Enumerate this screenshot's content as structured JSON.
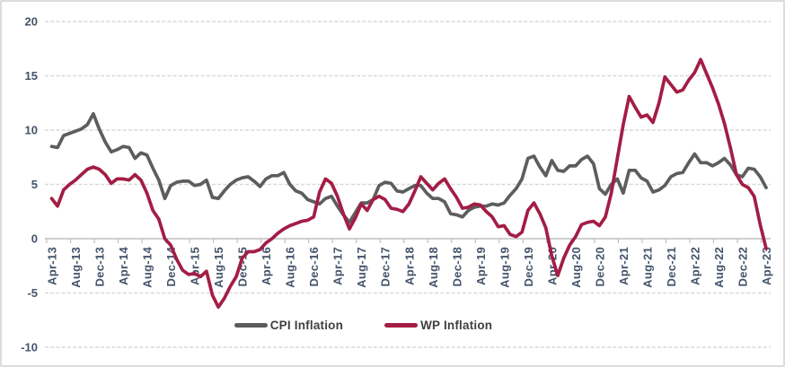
{
  "figure": {
    "background_color": "#ffffff",
    "border_color": "#dcdcdc"
  },
  "chart_data": {
    "type": "line",
    "title": "",
    "xlabel": "",
    "ylabel": "",
    "ylim": [
      -10,
      20
    ],
    "y_ticks": [
      20,
      15,
      10,
      5,
      0,
      -5,
      -10
    ],
    "grid": {
      "horizontal": true,
      "style": "dashed",
      "color": "#d9d9d9"
    },
    "axis": {
      "zero_line_color": "#bfbfbf",
      "tick_color": "#bfbfbf",
      "label_color": "#44546a"
    },
    "legend_position": "bottom-center-inside",
    "points_start": "Apr-13",
    "points_end": "Apr-23",
    "points_frequency": "monthly",
    "x_tick_labels": [
      "Apr-13",
      "Aug-13",
      "Dec-13",
      "Apr-14",
      "Aug-14",
      "Dec-14",
      "Apr-15",
      "Aug-15",
      "Dec-15",
      "Apr-16",
      "Aug-16",
      "Dec-16",
      "Apr-17",
      "Aug-17",
      "Dec-17",
      "Apr-18",
      "Aug-18",
      "Dec-18",
      "Apr-19",
      "Aug-19",
      "Dec-19",
      "Apr-20",
      "Aug-20",
      "Dec-20",
      "Apr-21",
      "Aug-21",
      "Dec-21",
      "Apr-22",
      "Aug-22",
      "Dec-22",
      "Apr-23"
    ],
    "x_points_per_tick": 4,
    "series": [
      {
        "name": "CPI Inflation",
        "color": "#5d5d5d",
        "values": [
          8.5,
          8.4,
          9.5,
          9.7,
          9.9,
          10.1,
          10.5,
          11.5,
          10.1,
          8.9,
          8.0,
          8.2,
          8.5,
          8.4,
          7.4,
          7.9,
          7.7,
          6.5,
          5.4,
          3.7,
          4.9,
          5.2,
          5.3,
          5.3,
          4.9,
          5.0,
          5.4,
          3.8,
          3.7,
          4.4,
          5.0,
          5.4,
          5.6,
          5.7,
          5.3,
          4.8,
          5.5,
          5.8,
          5.8,
          6.1,
          5.0,
          4.4,
          4.2,
          3.6,
          3.4,
          3.2,
          3.7,
          3.9,
          3.0,
          2.2,
          1.5,
          2.4,
          3.3,
          3.3,
          3.6,
          4.9,
          5.2,
          5.1,
          4.4,
          4.3,
          4.6,
          4.9,
          4.9,
          4.2,
          3.7,
          3.7,
          3.4,
          2.3,
          2.2,
          2.0,
          2.6,
          2.9,
          3.0,
          3.0,
          3.2,
          3.1,
          3.3,
          4.0,
          4.6,
          5.5,
          7.4,
          7.6,
          6.6,
          5.8,
          7.2,
          6.3,
          6.2,
          6.7,
          6.7,
          7.3,
          7.6,
          6.9,
          4.6,
          4.1,
          5.0,
          5.5,
          4.2,
          6.3,
          6.3,
          5.6,
          5.3,
          4.3,
          4.5,
          4.9,
          5.7,
          6.0,
          6.1,
          7.0,
          7.8,
          7.0,
          7.0,
          6.7,
          7.0,
          7.4,
          6.8,
          5.9,
          5.7,
          6.5,
          6.4,
          5.7,
          4.7
        ]
      },
      {
        "name": "WP Inflation",
        "color": "#a31d45",
        "values": [
          3.7,
          3.0,
          4.5,
          5.0,
          5.4,
          5.9,
          6.4,
          6.6,
          6.4,
          5.9,
          5.1,
          5.5,
          5.5,
          5.4,
          5.9,
          5.4,
          4.2,
          2.6,
          1.8,
          0.0,
          -0.6,
          -1.9,
          -2.9,
          -3.3,
          -3.2,
          -3.5,
          -3.0,
          -5.2,
          -6.3,
          -5.5,
          -4.4,
          -3.5,
          -1.8,
          -1.2,
          -1.2,
          -1.0,
          -0.4,
          0.0,
          0.5,
          0.9,
          1.2,
          1.4,
          1.6,
          1.7,
          2.0,
          4.3,
          5.5,
          5.1,
          3.9,
          2.3,
          0.9,
          1.9,
          3.2,
          2.6,
          3.6,
          3.9,
          3.6,
          2.8,
          2.7,
          2.5,
          3.2,
          4.4,
          5.7,
          5.1,
          4.5,
          5.1,
          5.5,
          4.6,
          3.8,
          2.8,
          2.9,
          3.2,
          3.1,
          2.5,
          2.0,
          1.1,
          1.2,
          0.4,
          0.2,
          0.6,
          2.6,
          3.3,
          2.3,
          1.0,
          -1.6,
          -3.4,
          -1.8,
          -0.6,
          0.2,
          1.3,
          1.5,
          1.6,
          1.2,
          2.0,
          4.2,
          7.4,
          10.5,
          13.1,
          12.1,
          11.2,
          11.4,
          10.7,
          12.5,
          14.9,
          14.2,
          13.5,
          13.7,
          14.6,
          15.3,
          16.5,
          15.2,
          13.9,
          12.4,
          10.6,
          8.4,
          5.9,
          5.0,
          4.7,
          3.9,
          1.3,
          -0.9
        ]
      }
    ]
  },
  "legend": {
    "cpi_label": "CPI Inflation",
    "wpi_label": "WP Inflation"
  }
}
